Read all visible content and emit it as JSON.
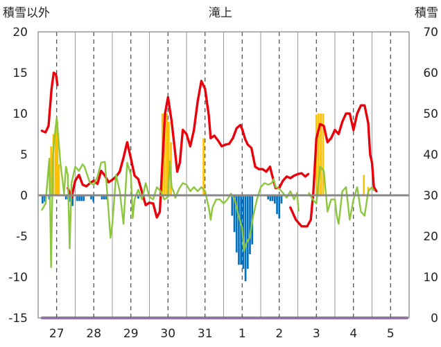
{
  "chart_data": {
    "type": "line",
    "title": "滝上",
    "ylabel_left": "積雪以外",
    "ylabel_right": "積雪",
    "ylim_left": [
      -15,
      20
    ],
    "ylim_right": [
      0,
      70
    ],
    "yticks_left": [
      "20",
      "15",
      "10",
      "5",
      "0",
      "-5",
      "-10",
      "-15"
    ],
    "yticks_right": [
      "70",
      "60",
      "50",
      "40",
      "30",
      "20",
      "10",
      "0"
    ],
    "x_range_days": [
      26.5,
      36.5
    ],
    "categories": [
      "27",
      "28",
      "29",
      "30",
      "31",
      "1",
      "2",
      "3",
      "4",
      "5"
    ],
    "grid": "dashed vertical at day centers, solid vertical at day boundaries",
    "colors": {
      "temperature": "#e8000b",
      "line_green": "#8cc63f",
      "bar_orange": "#ffc000",
      "bar_blue": "#0070c0",
      "snow_depth": "#7030a0",
      "baseline": "#888888",
      "frame": "#999999",
      "grid": "#333333"
    },
    "series": [
      {
        "key": "temperature",
        "axis": "left",
        "style": "line",
        "segments": [
          [
            [
              26.6,
              7.9
            ],
            [
              26.7,
              7.7
            ],
            [
              26.78,
              8.5
            ],
            [
              26.86,
              13.0
            ],
            [
              26.92,
              15.0
            ],
            [
              26.98,
              14.8
            ],
            [
              27.02,
              13.5
            ]
          ],
          [
            [
              27.3,
              0.9
            ],
            [
              27.4,
              -0.3
            ],
            [
              27.5,
              1.8
            ],
            [
              27.6,
              2.5
            ],
            [
              27.7,
              1.3
            ],
            [
              27.8,
              1.1
            ],
            [
              27.9,
              1.5
            ],
            [
              28.0,
              1.8
            ],
            [
              28.1,
              1.4
            ],
            [
              28.2,
              3.0
            ],
            [
              28.3,
              2.4
            ],
            [
              28.4,
              1.6
            ],
            [
              28.5,
              1.9
            ],
            [
              28.6,
              2.3
            ],
            [
              28.7,
              2.9
            ],
            [
              28.8,
              4.6
            ],
            [
              28.9,
              6.5
            ],
            [
              29.0,
              4.5
            ],
            [
              29.1,
              2.4
            ],
            [
              29.2,
              2.0
            ],
            [
              29.3,
              0.4
            ],
            [
              29.4,
              -1.2
            ],
            [
              29.5,
              -0.9
            ],
            [
              29.6,
              -1.0
            ],
            [
              29.7,
              -2.7
            ],
            [
              29.78,
              -2.0
            ],
            [
              29.85,
              4.0
            ],
            [
              29.92,
              10.0
            ],
            [
              30.0,
              12.0
            ],
            [
              30.1,
              9.0
            ],
            [
              30.2,
              5.0
            ],
            [
              30.25,
              2.9
            ],
            [
              30.32,
              4.0
            ],
            [
              30.4,
              8.0
            ],
            [
              30.5,
              7.5
            ],
            [
              30.6,
              6.0
            ],
            [
              30.7,
              8.0
            ],
            [
              30.8,
              11.5
            ],
            [
              30.9,
              14.0
            ],
            [
              31.0,
              13.0
            ],
            [
              31.1,
              9.8
            ],
            [
              31.15,
              7.0
            ],
            [
              31.25,
              7.3
            ],
            [
              31.35,
              6.7
            ],
            [
              31.45,
              6.0
            ],
            [
              31.55,
              6.2
            ],
            [
              31.65,
              6.3
            ],
            [
              31.75,
              7.0
            ],
            [
              31.85,
              8.2
            ],
            [
              31.95,
              8.6
            ],
            [
              32.0,
              8.1
            ],
            [
              32.08,
              6.9
            ],
            [
              32.15,
              6.2
            ],
            [
              32.25,
              5.8
            ],
            [
              32.35,
              3.5
            ],
            [
              32.45,
              3.2
            ],
            [
              32.55,
              3.2
            ],
            [
              32.65,
              2.9
            ],
            [
              32.75,
              3.5
            ],
            [
              32.8,
              2.6
            ],
            [
              32.9,
              0.9
            ],
            [
              33.0,
              0.9
            ],
            [
              33.1,
              1.8
            ],
            [
              33.2,
              2.3
            ],
            [
              33.3,
              2.1
            ],
            [
              33.4,
              2.4
            ],
            [
              33.5,
              2.6
            ],
            [
              33.6,
              2.7
            ],
            [
              33.7,
              2.3
            ],
            [
              33.78,
              2.6
            ]
          ],
          [
            [
              33.3,
              -1.5
            ],
            [
              33.45,
              -3.0
            ],
            [
              33.6,
              -3.8
            ],
            [
              33.75,
              -3.8
            ],
            [
              33.85,
              -3.0
            ],
            [
              33.92,
              0.5
            ],
            [
              34.0,
              7.0
            ],
            [
              34.1,
              8.7
            ],
            [
              34.2,
              8.5
            ],
            [
              34.3,
              6.5
            ],
            [
              34.4,
              7.0
            ],
            [
              34.5,
              8.0
            ],
            [
              34.6,
              7.5
            ],
            [
              34.7,
              9.0
            ],
            [
              34.8,
              10.0
            ],
            [
              34.9,
              10.0
            ],
            [
              35.0,
              8.0
            ],
            [
              35.1,
              10.0
            ],
            [
              35.2,
              11.0
            ],
            [
              35.3,
              11.0
            ],
            [
              35.4,
              8.8
            ],
            [
              35.45,
              5.0
            ],
            [
              35.5,
              4.0
            ],
            [
              35.55,
              1.0
            ],
            [
              35.62,
              0.5
            ]
          ]
        ]
      },
      {
        "key": "line_green",
        "axis": "left",
        "style": "line",
        "segments": [
          [
            [
              26.6,
              -1.8
            ],
            [
              26.7,
              -1.0
            ],
            [
              26.8,
              4.5
            ],
            [
              26.85,
              -8.8
            ],
            [
              26.9,
              5.0
            ],
            [
              26.95,
              7.5
            ],
            [
              27.0,
              9.5
            ],
            [
              27.1,
              4.0
            ],
            [
              27.2,
              0.2
            ],
            [
              27.25,
              3.5
            ],
            [
              27.3,
              2.5
            ],
            [
              27.35,
              -6.5
            ],
            [
              27.4,
              1.5
            ],
            [
              27.5,
              3.5
            ],
            [
              27.6,
              3.0
            ],
            [
              27.7,
              3.8
            ],
            [
              27.75,
              3.5
            ],
            [
              27.8,
              2.8
            ],
            [
              27.9,
              1.5
            ],
            [
              28.0,
              1.3
            ],
            [
              28.1,
              2.3
            ],
            [
              28.2,
              4.0
            ],
            [
              28.3,
              4.1
            ],
            [
              28.4,
              -2.0
            ],
            [
              28.45,
              -5.2
            ],
            [
              28.5,
              -3.5
            ],
            [
              28.6,
              2.5
            ],
            [
              28.7,
              0.5
            ],
            [
              28.8,
              -3.5
            ],
            [
              28.9,
              4.0
            ],
            [
              29.0,
              2.5
            ],
            [
              29.05,
              -2.8
            ],
            [
              29.1,
              -0.5
            ],
            [
              29.2,
              0.7
            ],
            [
              29.3,
              -0.5
            ],
            [
              29.4,
              1.5
            ],
            [
              29.5,
              -0.2
            ],
            [
              29.6,
              -0.5
            ],
            [
              29.7,
              1.0
            ],
            [
              29.8,
              0.5
            ],
            [
              29.9,
              -0.5
            ],
            [
              30.0,
              -0.2
            ],
            [
              30.05,
              4.2
            ],
            [
              30.1,
              1.0
            ],
            [
              30.15,
              0.5
            ],
            [
              30.2,
              -0.3
            ],
            [
              30.3,
              0.8
            ],
            [
              30.4,
              1.5
            ],
            [
              30.5,
              1.3
            ],
            [
              30.6,
              0.5
            ],
            [
              30.7,
              1.0
            ],
            [
              30.8,
              0.5
            ],
            [
              30.9,
              1.0
            ],
            [
              31.0,
              0.5
            ],
            [
              31.1,
              -1.5
            ],
            [
              31.15,
              -3.0
            ],
            [
              31.2,
              -1.5
            ],
            [
              31.3,
              -0.5
            ],
            [
              31.4,
              -0.5
            ],
            [
              31.5,
              -1.0
            ],
            [
              31.6,
              -0.5
            ],
            [
              31.7,
              0.2
            ],
            [
              31.8,
              -0.5
            ],
            [
              31.9,
              -2.5
            ],
            [
              32.0,
              -4.0
            ],
            [
              32.05,
              -6.8
            ],
            [
              32.1,
              -6.0
            ],
            [
              32.15,
              -5.5
            ],
            [
              32.2,
              -5.2
            ],
            [
              32.3,
              -2.5
            ],
            [
              32.4,
              -0.5
            ],
            [
              32.5,
              1.0
            ],
            [
              32.6,
              1.5
            ],
            [
              32.7,
              1.3
            ],
            [
              32.8,
              1.5
            ],
            [
              32.85,
              2.0
            ],
            [
              32.9,
              1.0
            ],
            [
              33.0,
              0.8
            ],
            [
              33.1,
              0.3
            ],
            [
              33.2,
              -0.3
            ],
            [
              33.3,
              0.5
            ],
            [
              33.4,
              -0.5
            ],
            [
              33.48,
              0.3
            ],
            [
              33.52,
              -1.9
            ]
          ],
          [
            [
              33.8,
              0.3
            ],
            [
              33.9,
              -0.5
            ],
            [
              34.0,
              -1.0
            ],
            [
              34.1,
              3.5
            ],
            [
              34.2,
              3.0
            ],
            [
              34.3,
              -2.0
            ],
            [
              34.4,
              -0.5
            ],
            [
              34.5,
              -0.5
            ],
            [
              34.55,
              -2.5
            ],
            [
              34.6,
              -3.5
            ],
            [
              34.7,
              0.5
            ],
            [
              34.8,
              1.0
            ],
            [
              34.9,
              -3.0
            ],
            [
              35.0,
              -0.5
            ],
            [
              35.1,
              1.0
            ],
            [
              35.2,
              -2.0
            ],
            [
              35.3,
              -2.5
            ],
            [
              35.4,
              0.5
            ],
            [
              35.5,
              1.0
            ],
            [
              35.55,
              0.6
            ]
          ]
        ]
      },
      {
        "key": "snow_depth",
        "axis": "right",
        "style": "line",
        "segments": [
          [
            [
              26.6,
              0
            ],
            [
              36.45,
              0
            ]
          ]
        ]
      },
      {
        "key": "bar_orange",
        "axis": "left",
        "style": "bars",
        "width_days": 0.05,
        "points": [
          [
            26.85,
            6.0
          ],
          [
            26.91,
            7.5
          ],
          [
            26.97,
            8.5
          ],
          [
            27.02,
            9.0
          ],
          [
            27.06,
            3.8
          ],
          [
            29.85,
            10.0
          ],
          [
            29.91,
            10.0
          ],
          [
            29.97,
            10.0
          ],
          [
            30.02,
            9.0
          ],
          [
            30.08,
            6.5
          ],
          [
            30.96,
            7.0
          ],
          [
            34.0,
            9.9
          ],
          [
            34.06,
            10.0
          ],
          [
            34.12,
            10.0
          ],
          [
            34.18,
            10.0
          ],
          [
            35.28,
            2.5
          ],
          [
            35.4,
            1.0
          ]
        ]
      },
      {
        "key": "bar_blue",
        "axis": "left",
        "style": "bars",
        "width_days": 0.05,
        "points": [
          [
            26.62,
            -1.0
          ],
          [
            26.68,
            -0.8
          ],
          [
            26.8,
            -0.5
          ],
          [
            27.25,
            -0.5
          ],
          [
            27.31,
            -0.5
          ],
          [
            27.37,
            -0.8
          ],
          [
            27.43,
            -1.3
          ],
          [
            27.55,
            -0.7
          ],
          [
            27.61,
            -0.7
          ],
          [
            27.67,
            -0.7
          ],
          [
            27.73,
            -0.7
          ],
          [
            27.93,
            -0.5
          ],
          [
            27.99,
            -0.8
          ],
          [
            28.22,
            -0.5
          ],
          [
            28.28,
            -0.5
          ],
          [
            28.34,
            -0.5
          ],
          [
            29.2,
            -0.4
          ],
          [
            31.73,
            -2.5
          ],
          [
            31.79,
            -4.5
          ],
          [
            31.85,
            -7.0
          ],
          [
            31.91,
            -8.5
          ],
          [
            31.97,
            -8.5
          ],
          [
            32.03,
            -9.0
          ],
          [
            32.09,
            -10.5
          ],
          [
            32.15,
            -9.0
          ],
          [
            32.21,
            -7.2
          ],
          [
            32.27,
            -6.0
          ],
          [
            32.7,
            -0.5
          ],
          [
            32.76,
            -0.7
          ],
          [
            32.82,
            -0.7
          ],
          [
            32.88,
            -1.0
          ],
          [
            32.94,
            -2.3
          ],
          [
            33.0,
            -2.8
          ],
          [
            33.06,
            -1.0
          ]
        ]
      }
    ]
  }
}
